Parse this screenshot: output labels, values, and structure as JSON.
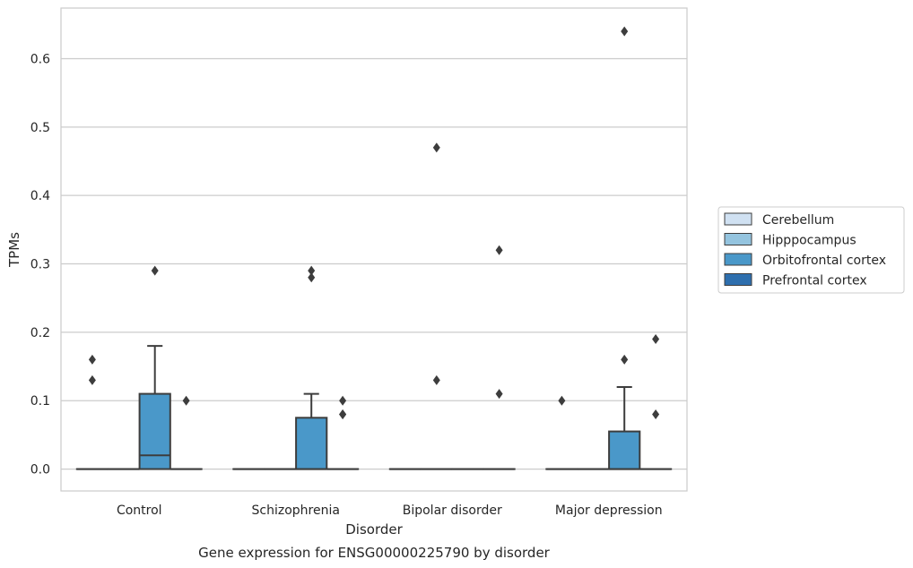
{
  "chart_data": {
    "type": "box",
    "title": "",
    "caption": "Gene expression for ENSG00000225790 by disorder",
    "xlabel": "Disorder",
    "ylabel": "TPMs",
    "categories": [
      "Control",
      "Schizophrenia",
      "Bipolar disorder",
      "Major depression"
    ],
    "ylim": [
      -0.032,
      0.674
    ],
    "yticks": [
      "0.0",
      "0.1",
      "0.2",
      "0.3",
      "0.4",
      "0.5",
      "0.6"
    ],
    "grid": true,
    "legend": {
      "placement": "right"
    },
    "colors": {
      "Cerebellum": "#d0e1f2",
      "Hipppocampus": "#94c4df",
      "Orbitofrontal cortex": "#4a98c9",
      "Prefrontal cortex": "#2e6fae",
      "edge": "#3d3d3d",
      "grid": "#cccccc"
    },
    "series": [
      {
        "name": "Cerebellum",
        "boxes": [
          {
            "q1": 0,
            "median": 0,
            "q3": 0,
            "whisker_low": 0,
            "whisker_high": 0,
            "outliers": [
              0.16,
              0.13
            ]
          },
          {
            "q1": 0,
            "median": 0,
            "q3": 0,
            "whisker_low": 0,
            "whisker_high": 0,
            "outliers": []
          },
          {
            "q1": 0,
            "median": 0,
            "q3": 0,
            "whisker_low": 0,
            "whisker_high": 0,
            "outliers": []
          },
          {
            "q1": 0,
            "median": 0,
            "q3": 0,
            "whisker_low": 0,
            "whisker_high": 0,
            "outliers": [
              0.1
            ]
          }
        ]
      },
      {
        "name": "Hipppocampus",
        "boxes": [
          {
            "q1": 0,
            "median": 0,
            "q3": 0,
            "whisker_low": 0,
            "whisker_high": 0,
            "outliers": []
          },
          {
            "q1": 0,
            "median": 0,
            "q3": 0,
            "whisker_low": 0,
            "whisker_high": 0,
            "outliers": []
          },
          {
            "q1": 0,
            "median": 0,
            "q3": 0,
            "whisker_low": 0,
            "whisker_high": 0,
            "outliers": [
              0.47,
              0.13
            ]
          },
          {
            "q1": 0,
            "median": 0,
            "q3": 0,
            "whisker_low": 0,
            "whisker_high": 0,
            "outliers": []
          }
        ]
      },
      {
        "name": "Orbitofrontal cortex",
        "boxes": [
          {
            "q1": 0,
            "median": 0.02,
            "q3": 0.11,
            "whisker_low": 0,
            "whisker_high": 0.18,
            "outliers": [
              0.29
            ]
          },
          {
            "q1": 0,
            "median": 0,
            "q3": 0.075,
            "whisker_low": 0,
            "whisker_high": 0.11,
            "outliers": [
              0.29,
              0.28
            ]
          },
          {
            "q1": 0,
            "median": 0,
            "q3": 0,
            "whisker_low": 0,
            "whisker_high": 0,
            "outliers": []
          },
          {
            "q1": 0,
            "median": 0,
            "q3": 0.055,
            "whisker_low": 0,
            "whisker_high": 0.12,
            "outliers": [
              0.64,
              0.16
            ]
          }
        ]
      },
      {
        "name": "Prefrontal cortex",
        "boxes": [
          {
            "q1": 0,
            "median": 0,
            "q3": 0,
            "whisker_low": 0,
            "whisker_high": 0,
            "outliers": [
              0.1
            ]
          },
          {
            "q1": 0,
            "median": 0,
            "q3": 0,
            "whisker_low": 0,
            "whisker_high": 0,
            "outliers": [
              0.1,
              0.08,
              0.08
            ]
          },
          {
            "q1": 0,
            "median": 0,
            "q3": 0,
            "whisker_low": 0,
            "whisker_high": 0,
            "outliers": [
              0.32,
              0.11
            ]
          },
          {
            "q1": 0,
            "median": 0,
            "q3": 0,
            "whisker_low": 0,
            "whisker_high": 0,
            "outliers": [
              0.19,
              0.08
            ]
          }
        ]
      }
    ]
  }
}
